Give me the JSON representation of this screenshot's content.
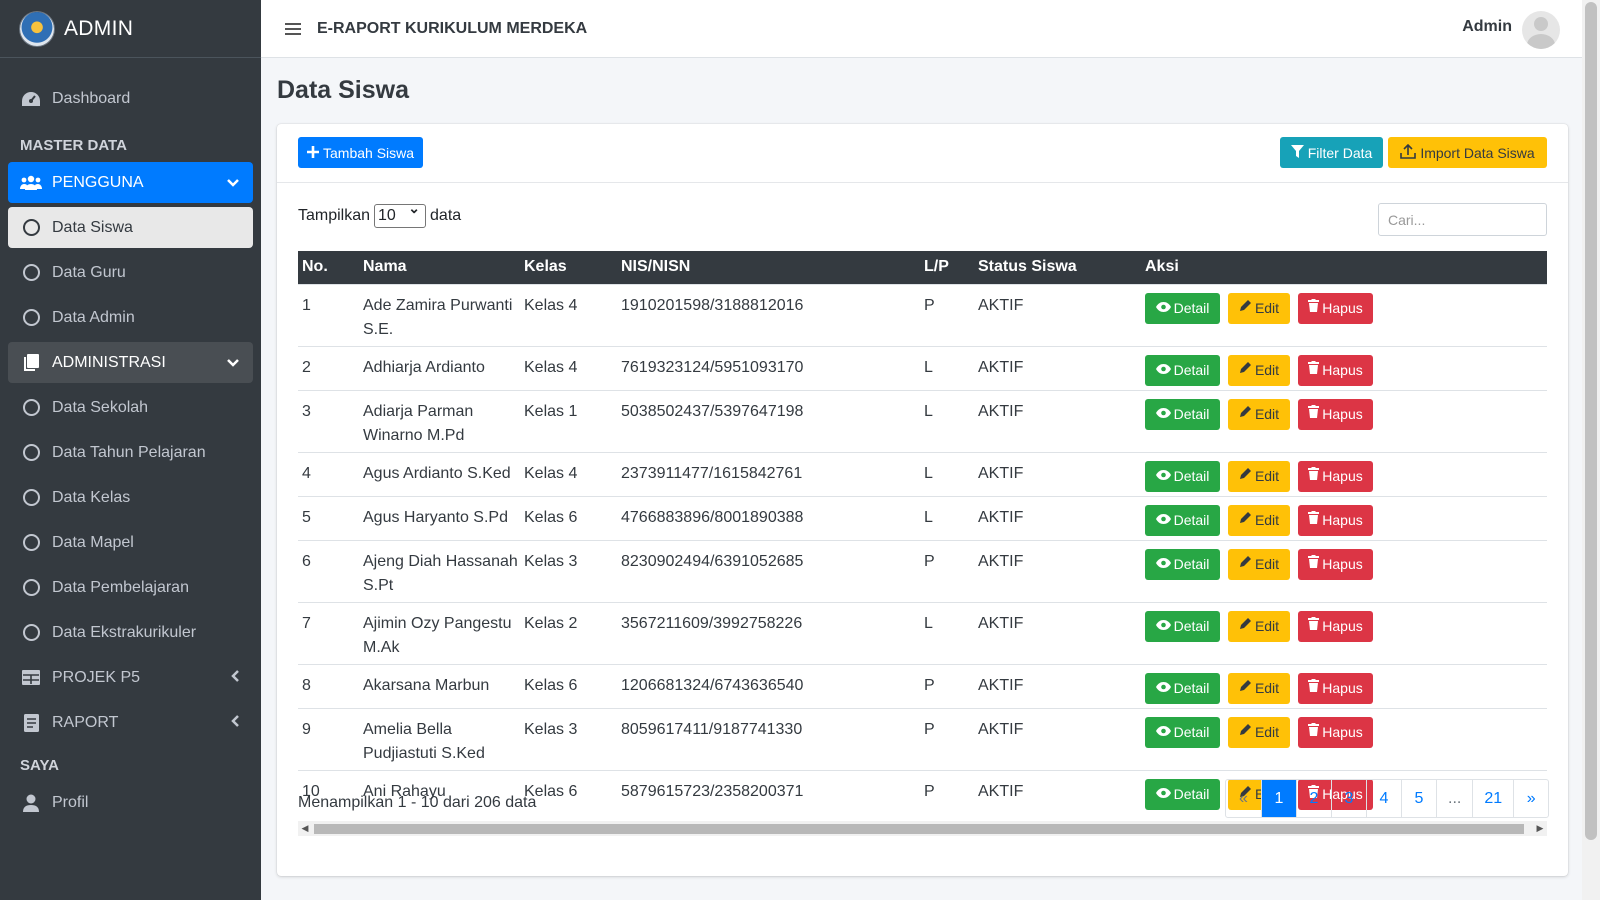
{
  "brand": {
    "name": "ADMIN"
  },
  "sidebar": {
    "dashboard": "Dashboard",
    "section_master": "MASTER DATA",
    "pengguna": "PENGGUNA",
    "pengguna_items": [
      "Data Siswa",
      "Data Guru",
      "Data Admin"
    ],
    "administrasi": "ADMINISTRASI",
    "administrasi_items": [
      "Data Sekolah",
      "Data Tahun Pelajaran",
      "Data Kelas",
      "Data Mapel",
      "Data Pembelajaran",
      "Data Ekstrakurikuler"
    ],
    "projek": "PROJEK P5",
    "raport": "RAPORT",
    "section_saya": "SAYA",
    "profil": "Profil"
  },
  "header": {
    "title": "E-RAPORT KURIKULUM MERDEKA",
    "user": "Admin"
  },
  "page": {
    "title": "Data Siswa",
    "add_button": "Tambah Siswa",
    "filter_button": "Filter Data",
    "import_button": "Import Data Siswa",
    "show_prefix": "Tampilkan",
    "show_value": "10",
    "show_suffix": "data",
    "search_placeholder": "Cari...",
    "summary": "Menampilkan 1 - 10 dari 206 data"
  },
  "table": {
    "columns": [
      "No.",
      "Nama",
      "Kelas",
      "NIS/NISN",
      "L/P",
      "Status Siswa",
      "Aksi"
    ],
    "action_labels": {
      "detail": "Detail",
      "edit": "Edit",
      "hapus": "Hapus"
    },
    "rows": [
      {
        "no": "1",
        "nama": "Ade Zamira Purwanti S.E.",
        "kelas": "Kelas 4",
        "nis": "1910201598/3188812016",
        "lp": "P",
        "status": "AKTIF"
      },
      {
        "no": "2",
        "nama": "Adhiarja Ardianto",
        "kelas": "Kelas 4",
        "nis": "7619323124/5951093170",
        "lp": "L",
        "status": "AKTIF"
      },
      {
        "no": "3",
        "nama": "Adiarja Parman Winarno M.Pd",
        "kelas": "Kelas 1",
        "nis": "5038502437/5397647198",
        "lp": "L",
        "status": "AKTIF"
      },
      {
        "no": "4",
        "nama": "Agus Ardianto S.Ked",
        "kelas": "Kelas 4",
        "nis": "2373911477/1615842761",
        "lp": "L",
        "status": "AKTIF"
      },
      {
        "no": "5",
        "nama": "Agus Haryanto S.Pd",
        "kelas": "Kelas 6",
        "nis": "4766883896/8001890388",
        "lp": "L",
        "status": "AKTIF"
      },
      {
        "no": "6",
        "nama": "Ajeng Diah Hassanah S.Pt",
        "kelas": "Kelas 3",
        "nis": "8230902494/6391052685",
        "lp": "P",
        "status": "AKTIF"
      },
      {
        "no": "7",
        "nama": "Ajimin Ozy Pangestu M.Ak",
        "kelas": "Kelas 2",
        "nis": "3567211609/3992758226",
        "lp": "L",
        "status": "AKTIF"
      },
      {
        "no": "8",
        "nama": "Akarsana Marbun",
        "kelas": "Kelas 6",
        "nis": "1206681324/6743636540",
        "lp": "P",
        "status": "AKTIF"
      },
      {
        "no": "9",
        "nama": "Amelia Bella Pudjiastuti S.Ked",
        "kelas": "Kelas 3",
        "nis": "8059617411/9187741330",
        "lp": "P",
        "status": "AKTIF"
      },
      {
        "no": "10",
        "nama": "Ani Rahayu",
        "kelas": "Kelas 6",
        "nis": "5879615723/2358200371",
        "lp": "P",
        "status": "AKTIF"
      }
    ]
  },
  "pagination": {
    "prev": "«",
    "pages": [
      "1",
      "2",
      "3",
      "4",
      "5"
    ],
    "dots": "...",
    "last": "21",
    "next": "»",
    "current": "1"
  }
}
